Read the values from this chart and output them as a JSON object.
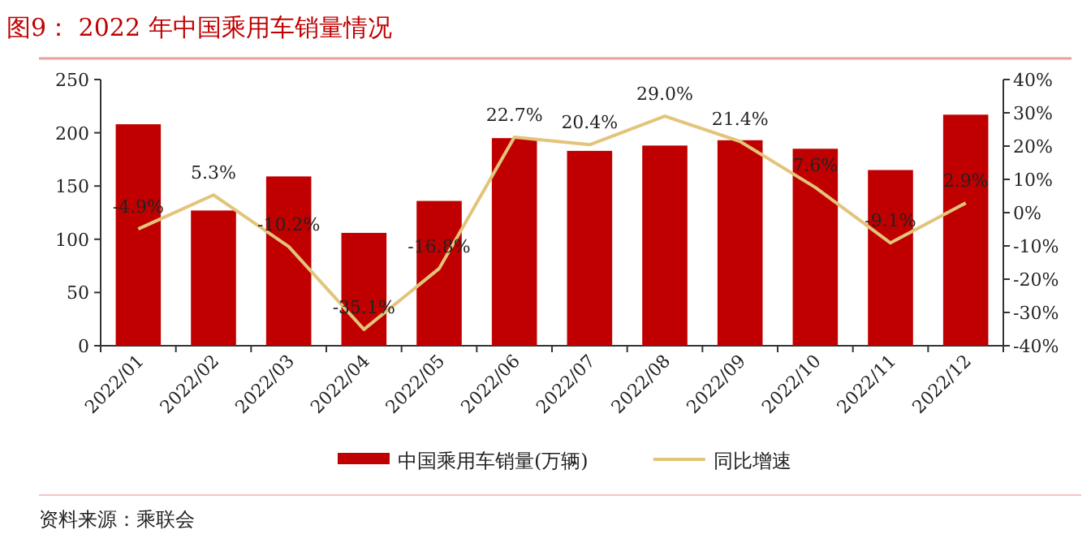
{
  "chart_data": {
    "type": "bar",
    "title": "图9：  2022 年中国乘用车销量情况",
    "categories": [
      "2022/01",
      "2022/02",
      "2022/03",
      "2022/04",
      "2022/05",
      "2022/06",
      "2022/07",
      "2022/08",
      "2022/09",
      "2022/10",
      "2022/11",
      "2022/12"
    ],
    "series": [
      {
        "name": "中国乘用车销量(万辆)",
        "color": "#c00000",
        "values": [
          208,
          127,
          159,
          106,
          136,
          195,
          183,
          188,
          193,
          185,
          165,
          217
        ]
      },
      {
        "name": "同比增速",
        "type": "line",
        "axis": "y2",
        "color": "#e2c47a",
        "values": [
          -4.9,
          5.3,
          -10.2,
          -35.1,
          -16.8,
          22.7,
          20.4,
          29.0,
          21.4,
          7.6,
          -9.1,
          2.9
        ],
        "value_labels": [
          "-4.9%",
          "5.3%",
          "-10.2%",
          "-35.1%",
          "-16.8%",
          "22.7%",
          "20.4%",
          "29.0%",
          "21.4%",
          "7.6%",
          "-9.1%",
          "2.9%"
        ]
      }
    ],
    "ylim": [
      0,
      250
    ],
    "yticks": [
      0,
      50,
      100,
      150,
      200,
      250
    ],
    "y2lim": [
      -40,
      40
    ],
    "y2ticks": [
      {
        "value": -40,
        "label": "-40%"
      },
      {
        "value": -30,
        "label": "-30%"
      },
      {
        "value": -20,
        "label": "-20%"
      },
      {
        "value": -10,
        "label": "-10%"
      },
      {
        "value": 0,
        "label": "0%"
      },
      {
        "value": 10,
        "label": "10%"
      },
      {
        "value": 20,
        "label": "20%"
      },
      {
        "value": 30,
        "label": "30%"
      },
      {
        "value": 40,
        "label": "40%"
      }
    ],
    "legend": "bottom",
    "grid": false,
    "annotations": [
      "资料来源：乘联会"
    ]
  }
}
